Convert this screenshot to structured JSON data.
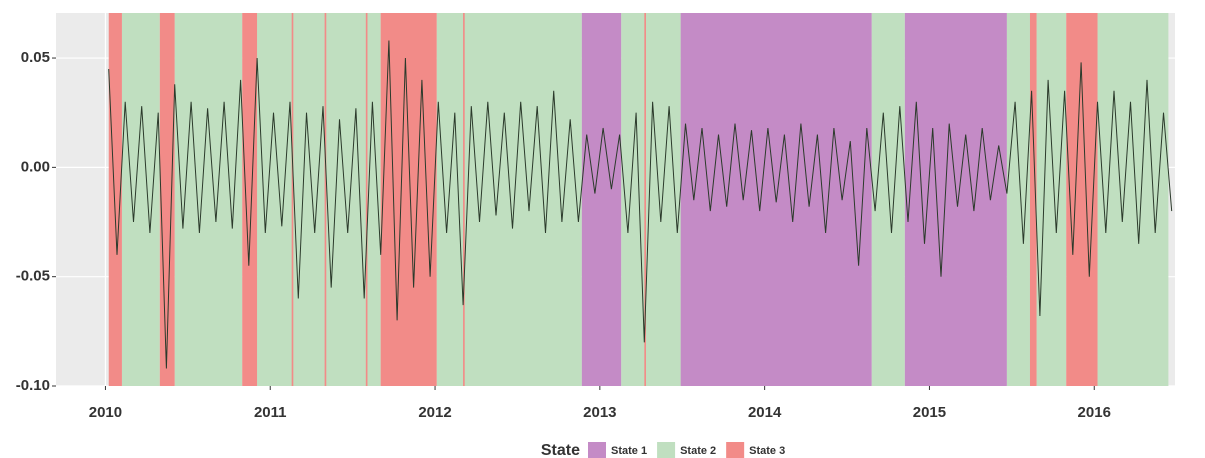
{
  "chart_data": {
    "type": "line",
    "legend_title": "State",
    "xlim": [
      2009.7,
      2016.49
    ],
    "xticks": [
      2010,
      2011,
      2012,
      2013,
      2014,
      2015,
      2016
    ],
    "ylim": [
      -0.1,
      0.0706
    ],
    "yticks": [
      {
        "value": -0.1,
        "label": "-0.10"
      },
      -0.05,
      {
        "value": 0,
        "label": "0.00"
      },
      0.05
    ],
    "grid": true,
    "series": [
      {
        "name": "State 1",
        "color": "#c48bc6",
        "intervals": [
          [
            2012.89,
            2013.13
          ],
          [
            2013.49,
            2014.65
          ],
          [
            2014.85,
            2015.47
          ]
        ]
      },
      {
        "name": "State 2",
        "color": "#c0dfc0",
        "intervals": [
          [
            2010.1,
            2010.33
          ],
          [
            2010.42,
            2010.83
          ],
          [
            2010.92,
            2011.67
          ],
          [
            2012.01,
            2012.89
          ],
          [
            2013.13,
            2013.49
          ],
          [
            2014.65,
            2014.85
          ],
          [
            2015.47,
            2015.61
          ],
          [
            2015.65,
            2015.83
          ],
          [
            2016.02,
            2016.45
          ]
        ]
      },
      {
        "name": "State 3",
        "color": "#f28b88",
        "intervals": [
          [
            2010.02,
            2010.1
          ],
          [
            2010.33,
            2010.42
          ],
          [
            2010.83,
            2010.92
          ],
          [
            2011.13,
            2011.14
          ],
          [
            2011.33,
            2011.34
          ],
          [
            2011.58,
            2011.59
          ],
          [
            2011.67,
            2012.01
          ],
          [
            2012.17,
            2012.18
          ],
          [
            2013.27,
            2013.28
          ],
          [
            2015.61,
            2015.65
          ],
          [
            2015.83,
            2016.02
          ]
        ]
      }
    ],
    "line": {
      "color": "#2b3a2b",
      "x": [
        2010.02,
        2010.07,
        2010.12,
        2010.17,
        2010.22,
        2010.27,
        2010.32,
        2010.37,
        2010.42,
        2010.47,
        2010.52,
        2010.57,
        2010.62,
        2010.67,
        2010.72,
        2010.77,
        2010.82,
        2010.87,
        2010.92,
        2010.97,
        2011.02,
        2011.07,
        2011.12,
        2011.17,
        2011.22,
        2011.27,
        2011.32,
        2011.37,
        2011.42,
        2011.47,
        2011.52,
        2011.57,
        2011.62,
        2011.67,
        2011.72,
        2011.77,
        2011.82,
        2011.87,
        2011.92,
        2011.97,
        2012.02,
        2012.07,
        2012.12,
        2012.17,
        2012.22,
        2012.27,
        2012.32,
        2012.37,
        2012.42,
        2012.47,
        2012.52,
        2012.57,
        2012.62,
        2012.67,
        2012.72,
        2012.77,
        2012.82,
        2012.87,
        2012.92,
        2012.97,
        2013.02,
        2013.07,
        2013.12,
        2013.17,
        2013.22,
        2013.27,
        2013.32,
        2013.37,
        2013.42,
        2013.47,
        2013.52,
        2013.57,
        2013.62,
        2013.67,
        2013.72,
        2013.77,
        2013.82,
        2013.87,
        2013.92,
        2013.97,
        2014.02,
        2014.07,
        2014.12,
        2014.17,
        2014.22,
        2014.27,
        2014.32,
        2014.37,
        2014.42,
        2014.47,
        2014.52,
        2014.57,
        2014.62,
        2014.67,
        2014.72,
        2014.77,
        2014.82,
        2014.87,
        2014.92,
        2014.97,
        2015.02,
        2015.07,
        2015.12,
        2015.17,
        2015.22,
        2015.27,
        2015.32,
        2015.37,
        2015.42,
        2015.47,
        2015.52,
        2015.57,
        2015.62,
        2015.67,
        2015.72,
        2015.77,
        2015.82,
        2015.87,
        2015.92,
        2015.97,
        2016.02,
        2016.07,
        2016.12,
        2016.17,
        2016.22,
        2016.27,
        2016.32,
        2016.37,
        2016.42,
        2016.47
      ],
      "values": [
        0.045,
        -0.04,
        0.03,
        -0.025,
        0.028,
        -0.03,
        0.025,
        -0.092,
        0.038,
        -0.028,
        0.03,
        -0.03,
        0.027,
        -0.025,
        0.03,
        -0.028,
        0.04,
        -0.045,
        0.05,
        -0.03,
        0.025,
        -0.027,
        0.03,
        -0.06,
        0.025,
        -0.03,
        0.028,
        -0.055,
        0.022,
        -0.03,
        0.027,
        -0.06,
        0.03,
        -0.04,
        0.058,
        -0.07,
        0.05,
        -0.055,
        0.04,
        -0.05,
        0.03,
        -0.03,
        0.025,
        -0.063,
        0.028,
        -0.025,
        0.03,
        -0.022,
        0.025,
        -0.028,
        0.03,
        -0.02,
        0.028,
        -0.03,
        0.035,
        -0.025,
        0.022,
        -0.025,
        0.015,
        -0.012,
        0.018,
        -0.01,
        0.015,
        -0.03,
        0.025,
        -0.08,
        0.03,
        -0.025,
        0.028,
        -0.03,
        0.02,
        -0.015,
        0.018,
        -0.02,
        0.015,
        -0.018,
        0.02,
        -0.015,
        0.017,
        -0.02,
        0.018,
        -0.016,
        0.015,
        -0.025,
        0.02,
        -0.018,
        0.015,
        -0.03,
        0.018,
        -0.015,
        0.012,
        -0.045,
        0.018,
        -0.02,
        0.025,
        -0.03,
        0.028,
        -0.025,
        0.03,
        -0.035,
        0.018,
        -0.05,
        0.02,
        -0.018,
        0.015,
        -0.02,
        0.018,
        -0.015,
        0.01,
        -0.012,
        0.03,
        -0.035,
        0.035,
        -0.068,
        0.04,
        -0.03,
        0.035,
        -0.04,
        0.048,
        -0.05,
        0.03,
        -0.03,
        0.035,
        -0.025,
        0.03,
        -0.035,
        0.04,
        -0.03,
        0.025,
        -0.02
      ]
    }
  }
}
